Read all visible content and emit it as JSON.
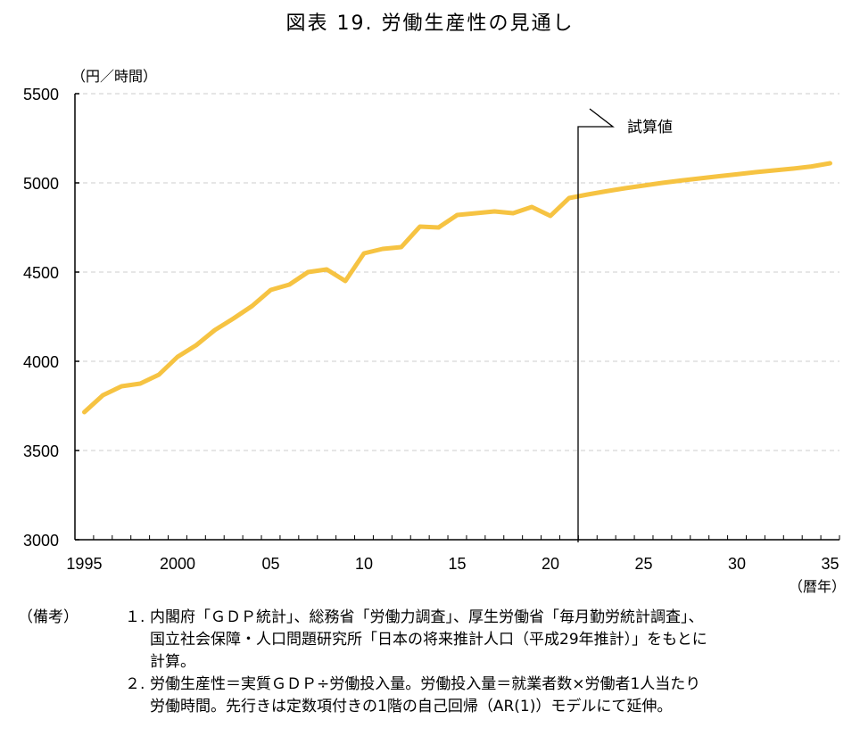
{
  "title": "図表 19.  労働生産性の見通し",
  "y_unit_label": "（円／時間）",
  "x_unit_label": "（暦年）",
  "annotation": "試算値",
  "colors": {
    "line": "#F6C342",
    "grid": "#CCCCCC",
    "axis": "#000000"
  },
  "y_ticks": [
    "5500",
    "5000",
    "4500",
    "4000",
    "3500",
    "3000"
  ],
  "x_tick_labels": [
    {
      "year": 1995,
      "label": "1995"
    },
    {
      "year": 2000,
      "label": "2000"
    },
    {
      "year": 2005,
      "label": "05"
    },
    {
      "year": 2010,
      "label": "10"
    },
    {
      "year": 2015,
      "label": "15"
    },
    {
      "year": 2020,
      "label": "20"
    },
    {
      "year": 2025,
      "label": "25"
    },
    {
      "year": 2030,
      "label": "30"
    },
    {
      "year": 2035,
      "label": "35"
    }
  ],
  "notes": {
    "head": "（備考）",
    "items": [
      {
        "num": "１.",
        "lines": [
          "内閣府「ＧＤＰ統計」、総務省「労働力調査」、厚生労働省「毎月勤労統計調査」、",
          "国立社会保障・人口問題研究所「日本の将来推計人口（平成29年推計）」をもとに",
          "計算。"
        ]
      },
      {
        "num": "２.",
        "lines": [
          "労働生産性＝実質ＧＤＰ÷労働投入量。労働投入量＝就業者数×労働者1人当たり",
          "労働時間。先行きは定数項付きの1階の自己回帰（AR(1)）モデルにて延伸。"
        ]
      }
    ]
  },
  "chart_data": {
    "type": "line",
    "title": "図表 19. 労働生産性の見通し",
    "xlabel": "（暦年）",
    "ylabel": "（円／時間）",
    "ylim": [
      3000,
      5500
    ],
    "xlim": [
      1995,
      2035
    ],
    "grid": true,
    "y_ticks": [
      3000,
      3500,
      4000,
      4500,
      5000,
      5500
    ],
    "x_ticks": [
      "1995",
      "2000",
      "05",
      "10",
      "15",
      "20",
      "25",
      "30",
      "35"
    ],
    "forecast_start_annotation": {
      "label": "試算値",
      "after_year": 2021
    },
    "x": [
      1995,
      1996,
      1997,
      1998,
      1999,
      2000,
      2001,
      2002,
      2003,
      2004,
      2005,
      2006,
      2007,
      2008,
      2009,
      2010,
      2011,
      2012,
      2013,
      2014,
      2015,
      2016,
      2017,
      2018,
      2019,
      2020,
      2021,
      2022,
      2023,
      2024,
      2025,
      2026,
      2027,
      2028,
      2029,
      2030,
      2031,
      2032,
      2033,
      2034,
      2035
    ],
    "series": [
      {
        "name": "労働生産性",
        "values": [
          3715,
          3810,
          3860,
          3875,
          3925,
          4025,
          4090,
          4175,
          4240,
          4310,
          4400,
          4430,
          4500,
          4515,
          4450,
          4605,
          4630,
          4640,
          4755,
          4750,
          4820,
          4830,
          4840,
          4830,
          4865,
          4815,
          4915,
          4935,
          4953,
          4970,
          4985,
          5000,
          5013,
          5025,
          5037,
          5048,
          5060,
          5070,
          5080,
          5092,
          5110
        ]
      }
    ]
  }
}
